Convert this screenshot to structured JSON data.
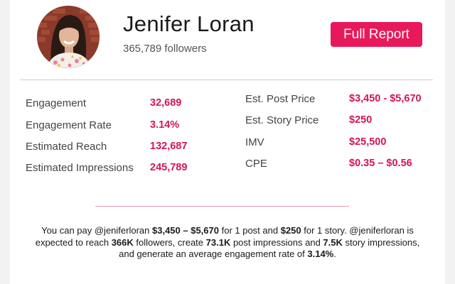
{
  "profile": {
    "name": "Jenifer Loran",
    "followers": "365,789 followers",
    "full_report_label": "Full Report"
  },
  "stats_left": [
    {
      "label": "Engagement",
      "value": "32,689"
    },
    {
      "label": "Engagement Rate",
      "value": "3.14%"
    },
    {
      "label": "Estimated Reach",
      "value": "132,687"
    },
    {
      "label": "Estimated Impressions",
      "value": "245,789"
    }
  ],
  "stats_right": [
    {
      "label": "Est. Post Price",
      "value": "$3,450 - $5,670"
    },
    {
      "label": "Est. Story Price",
      "value": "$250"
    },
    {
      "label": "IMV",
      "value": "$25,500"
    },
    {
      "label": "CPE",
      "value": "$0.35 – $0.56"
    }
  ],
  "summary": {
    "p1": "You can pay @jeniferloran ",
    "post_price": "$3,450 – $5,670",
    "p2": " for 1 post and ",
    "story_price": "$250",
    "p3": " for 1 story. @jeniferloran is",
    "p4": "expected to reach ",
    "reach": "366K",
    "p5": " followers, create ",
    "post_impressions": "73.1K",
    "p6": " post impressions and ",
    "story_impressions": "7.5K",
    "p7": " story impressions,",
    "p8": "and generate an average engagement rate of ",
    "engagement_rate": "3.14%",
    "p9": "."
  },
  "colors": {
    "accent": "#e8195a",
    "value_text": "#d41458",
    "divider": "#cfcfcf",
    "divider_accent": "#e59ab5"
  },
  "icons": {
    "avatar": "profile-photo"
  }
}
